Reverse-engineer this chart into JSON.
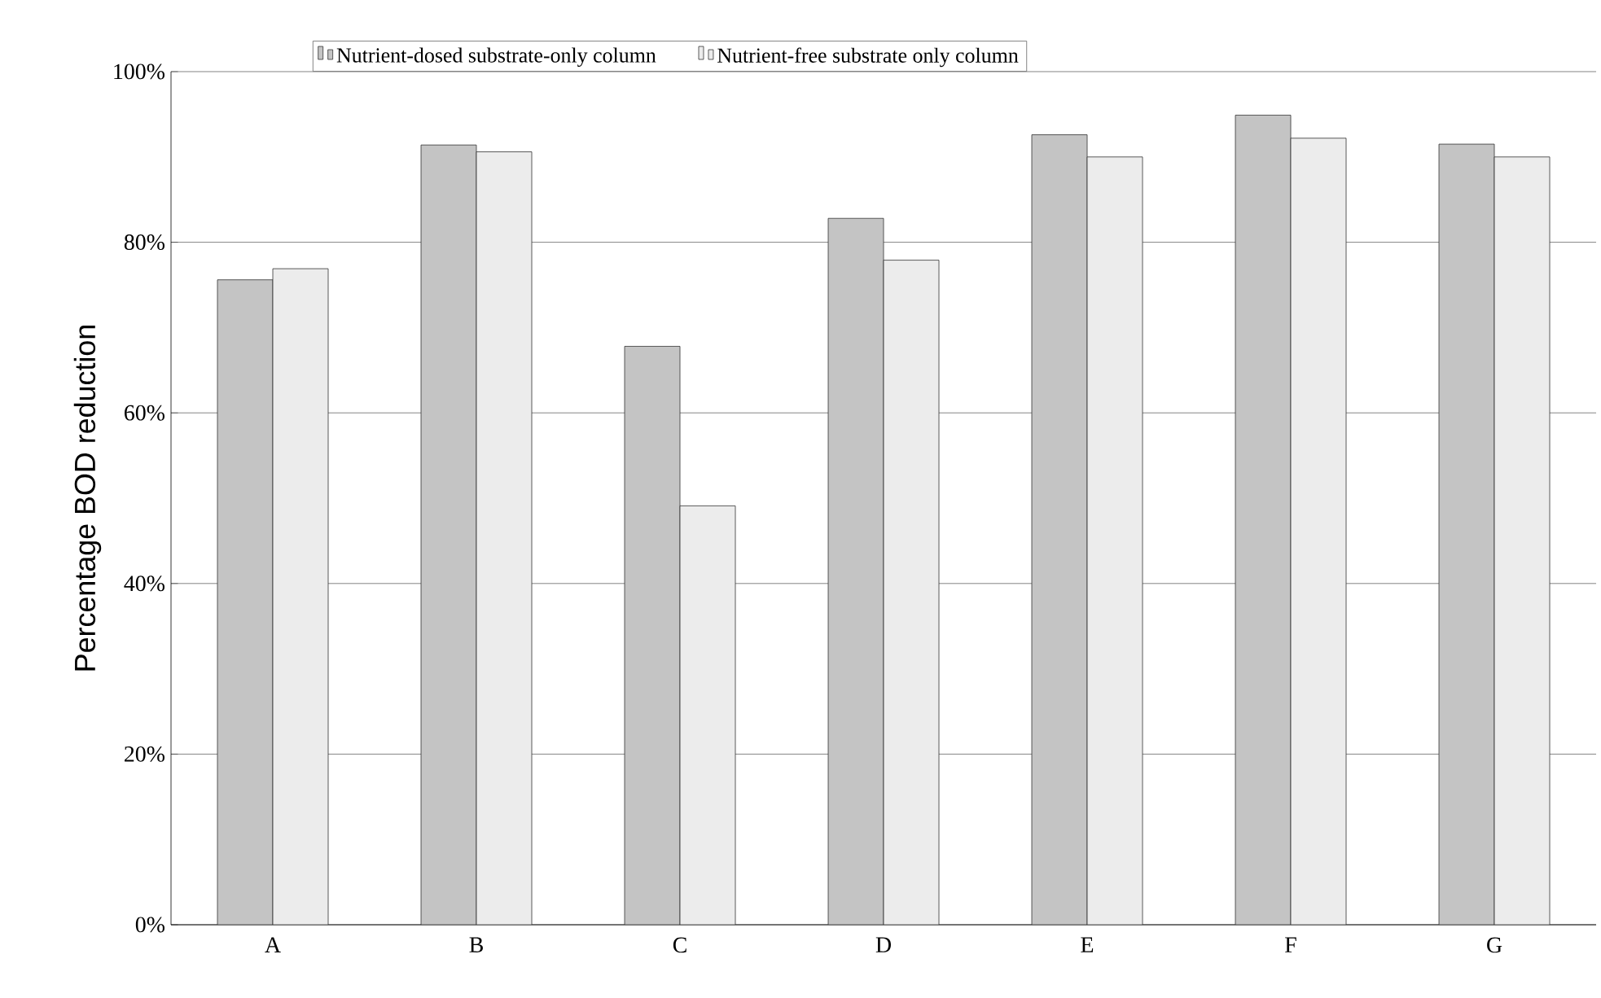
{
  "chart_data": {
    "type": "bar",
    "ylabel": "Percentage BOD reduction",
    "categories": [
      "A",
      "B",
      "C",
      "D",
      "E",
      "F",
      "G"
    ],
    "series": [
      {
        "name": "Nutrient-dosed substrate-only column",
        "color": "#c4c4c4",
        "values": [
          75.6,
          91.4,
          67.8,
          82.8,
          92.6,
          94.9,
          91.5
        ]
      },
      {
        "name": "Nutrient-free substrate only column",
        "color": "#ececec",
        "values": [
          76.9,
          90.6,
          49.1,
          77.9,
          90.0,
          92.2,
          90.0
        ]
      }
    ],
    "ylim": [
      0,
      100
    ],
    "yticks": [
      {
        "value": 0,
        "label": "0%"
      },
      {
        "value": 20,
        "label": "20%"
      },
      {
        "value": 40,
        "label": "40%"
      },
      {
        "value": 60,
        "label": "60%"
      },
      {
        "value": 80,
        "label": "80%"
      },
      {
        "value": 100,
        "label": "100%"
      }
    ],
    "grid": "y",
    "legend": "top"
  }
}
